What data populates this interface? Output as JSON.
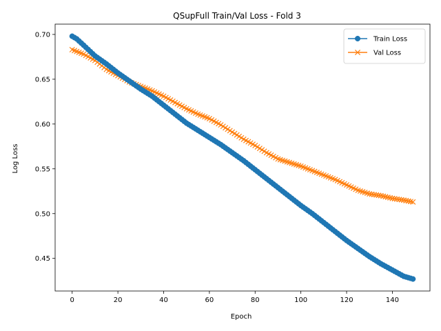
{
  "chart_data": {
    "type": "line",
    "title": "QSupFull Train/Val Loss - Fold 3",
    "xlabel": "Epoch",
    "ylabel": "Log Loss",
    "xlim": [
      -7.45,
      156.45
    ],
    "ylim": [
      0.4136,
      0.7115
    ],
    "xticks": [
      0,
      20,
      40,
      60,
      80,
      100,
      120,
      140
    ],
    "yticks": [
      0.45,
      0.5,
      0.55,
      0.6,
      0.65,
      0.7
    ],
    "ytick_labels": [
      "0.45",
      "0.50",
      "0.55",
      "0.60",
      "0.65",
      "0.70"
    ],
    "grid": false,
    "legend_position": "top-right",
    "series": [
      {
        "name": "Train Loss",
        "color": "#1f77b4",
        "marker": "circle",
        "knots": [
          [
            0,
            0.698
          ],
          [
            2,
            0.695
          ],
          [
            5,
            0.688
          ],
          [
            10,
            0.676
          ],
          [
            15,
            0.667
          ],
          [
            20,
            0.657
          ],
          [
            25,
            0.648
          ],
          [
            30,
            0.639
          ],
          [
            35,
            0.631
          ],
          [
            40,
            0.621
          ],
          [
            45,
            0.611
          ],
          [
            50,
            0.601
          ],
          [
            55,
            0.593
          ],
          [
            60,
            0.585
          ],
          [
            65,
            0.577
          ],
          [
            70,
            0.568
          ],
          [
            75,
            0.559
          ],
          [
            80,
            0.549
          ],
          [
            85,
            0.539
          ],
          [
            90,
            0.529
          ],
          [
            95,
            0.519
          ],
          [
            100,
            0.509
          ],
          [
            105,
            0.5
          ],
          [
            110,
            0.49
          ],
          [
            115,
            0.48
          ],
          [
            120,
            0.47
          ],
          [
            125,
            0.461
          ],
          [
            130,
            0.452
          ],
          [
            135,
            0.444
          ],
          [
            140,
            0.437
          ],
          [
            145,
            0.43
          ],
          [
            149,
            0.427
          ]
        ]
      },
      {
        "name": "Val Loss",
        "color": "#ff7f0e",
        "marker": "x",
        "knots": [
          [
            0,
            0.683
          ],
          [
            5,
            0.678
          ],
          [
            10,
            0.671
          ],
          [
            15,
            0.661
          ],
          [
            20,
            0.654
          ],
          [
            25,
            0.647
          ],
          [
            30,
            0.642
          ],
          [
            35,
            0.637
          ],
          [
            40,
            0.631
          ],
          [
            45,
            0.624
          ],
          [
            50,
            0.617
          ],
          [
            55,
            0.611
          ],
          [
            60,
            0.606
          ],
          [
            65,
            0.599
          ],
          [
            70,
            0.591
          ],
          [
            75,
            0.583
          ],
          [
            80,
            0.576
          ],
          [
            85,
            0.568
          ],
          [
            90,
            0.561
          ],
          [
            95,
            0.557
          ],
          [
            100,
            0.553
          ],
          [
            105,
            0.548
          ],
          [
            110,
            0.543
          ],
          [
            115,
            0.538
          ],
          [
            120,
            0.532
          ],
          [
            125,
            0.526
          ],
          [
            130,
            0.522
          ],
          [
            135,
            0.52
          ],
          [
            140,
            0.517
          ],
          [
            145,
            0.515
          ],
          [
            149,
            0.513
          ]
        ]
      }
    ]
  }
}
